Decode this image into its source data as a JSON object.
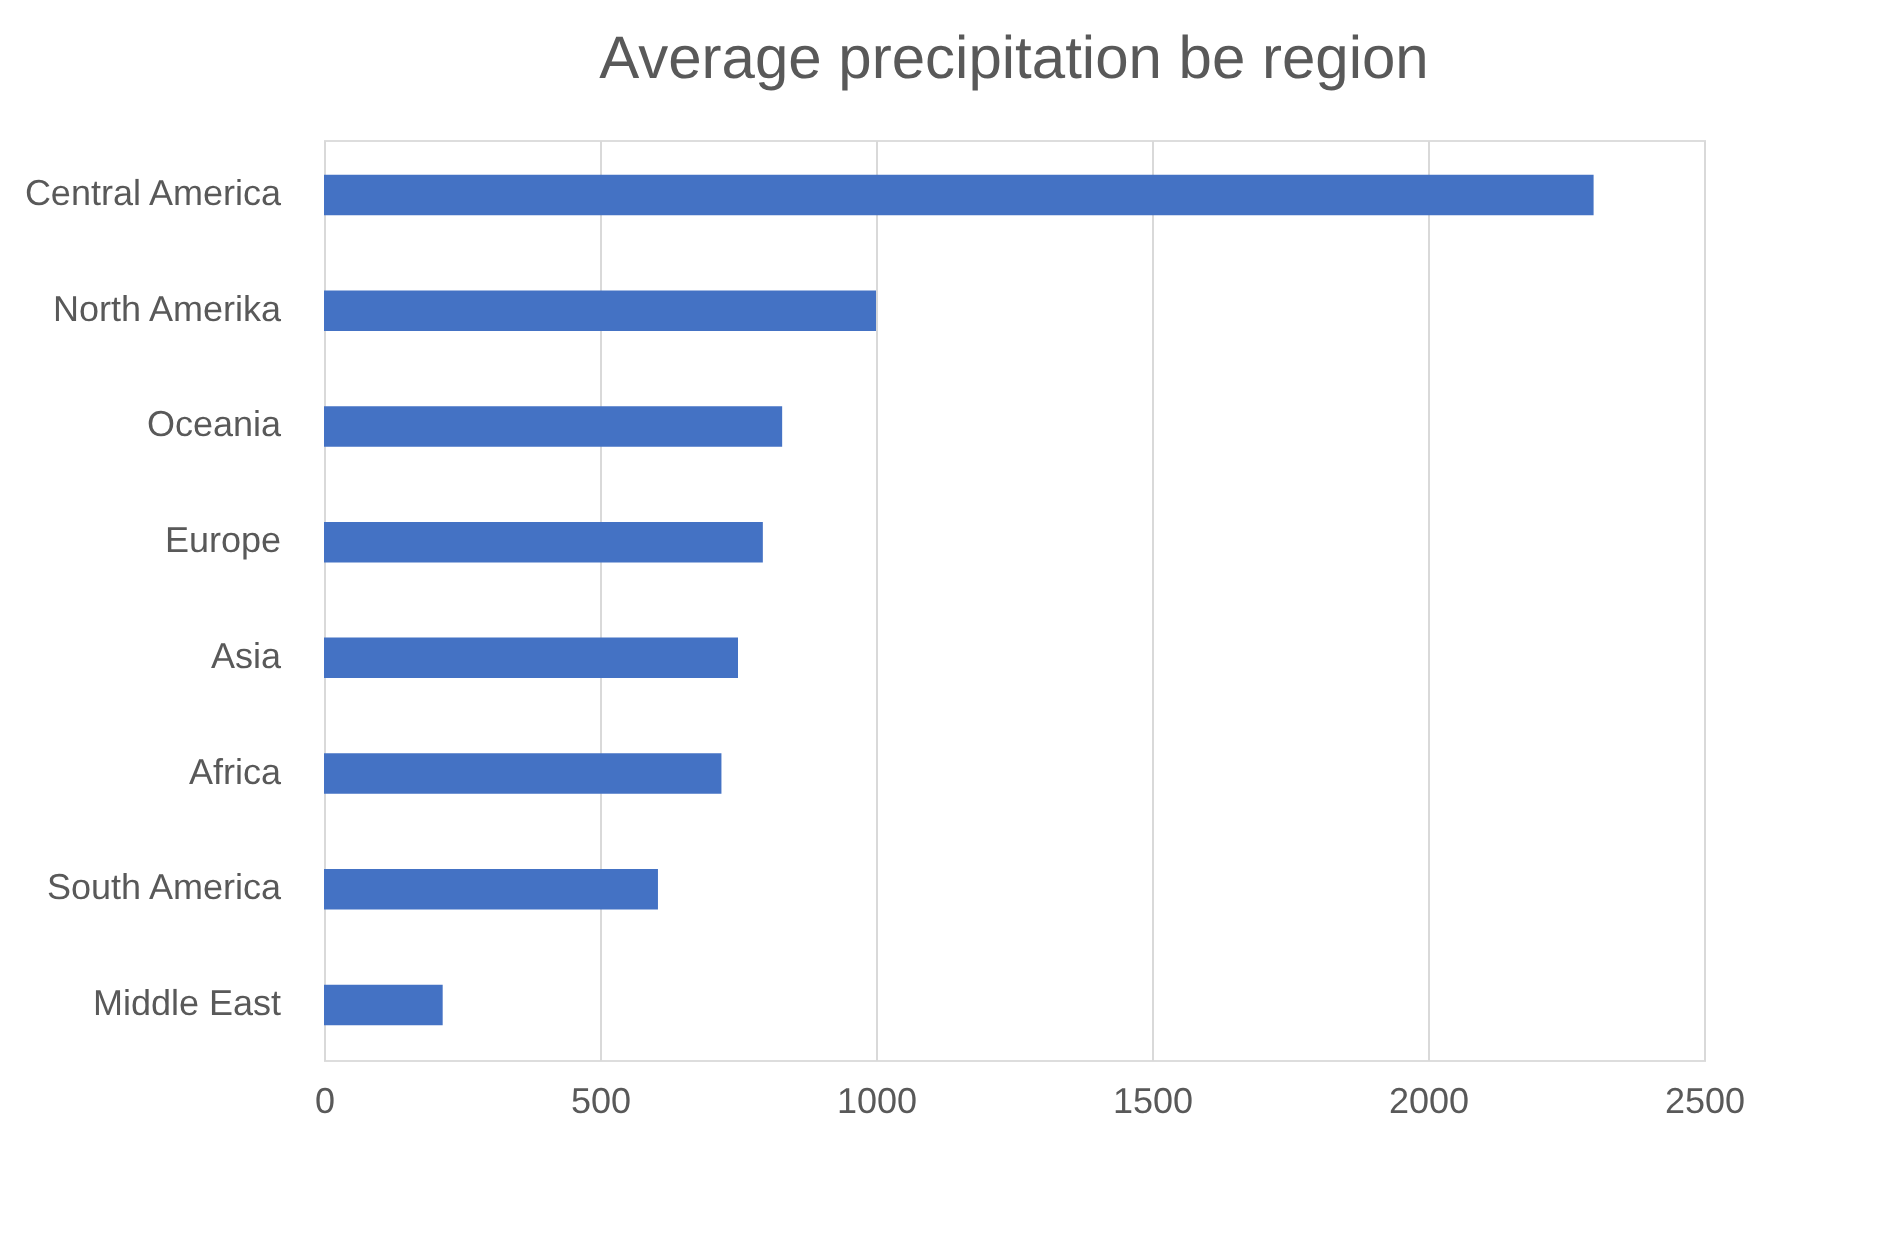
{
  "chart_data": {
    "type": "bar",
    "orientation": "horizontal",
    "title": "Average precipitation be region",
    "categories": [
      "Central America",
      "North Amerika",
      "Oceania",
      "Europe",
      "Asia",
      "Africa",
      "South America",
      "Middle East"
    ],
    "values": [
      2300,
      1000,
      830,
      795,
      750,
      720,
      605,
      215
    ],
    "color": "#4472c4",
    "xlim": [
      0,
      2500
    ],
    "xticks": [
      0,
      500,
      1000,
      1500,
      2000,
      2500
    ],
    "grid": "x"
  }
}
